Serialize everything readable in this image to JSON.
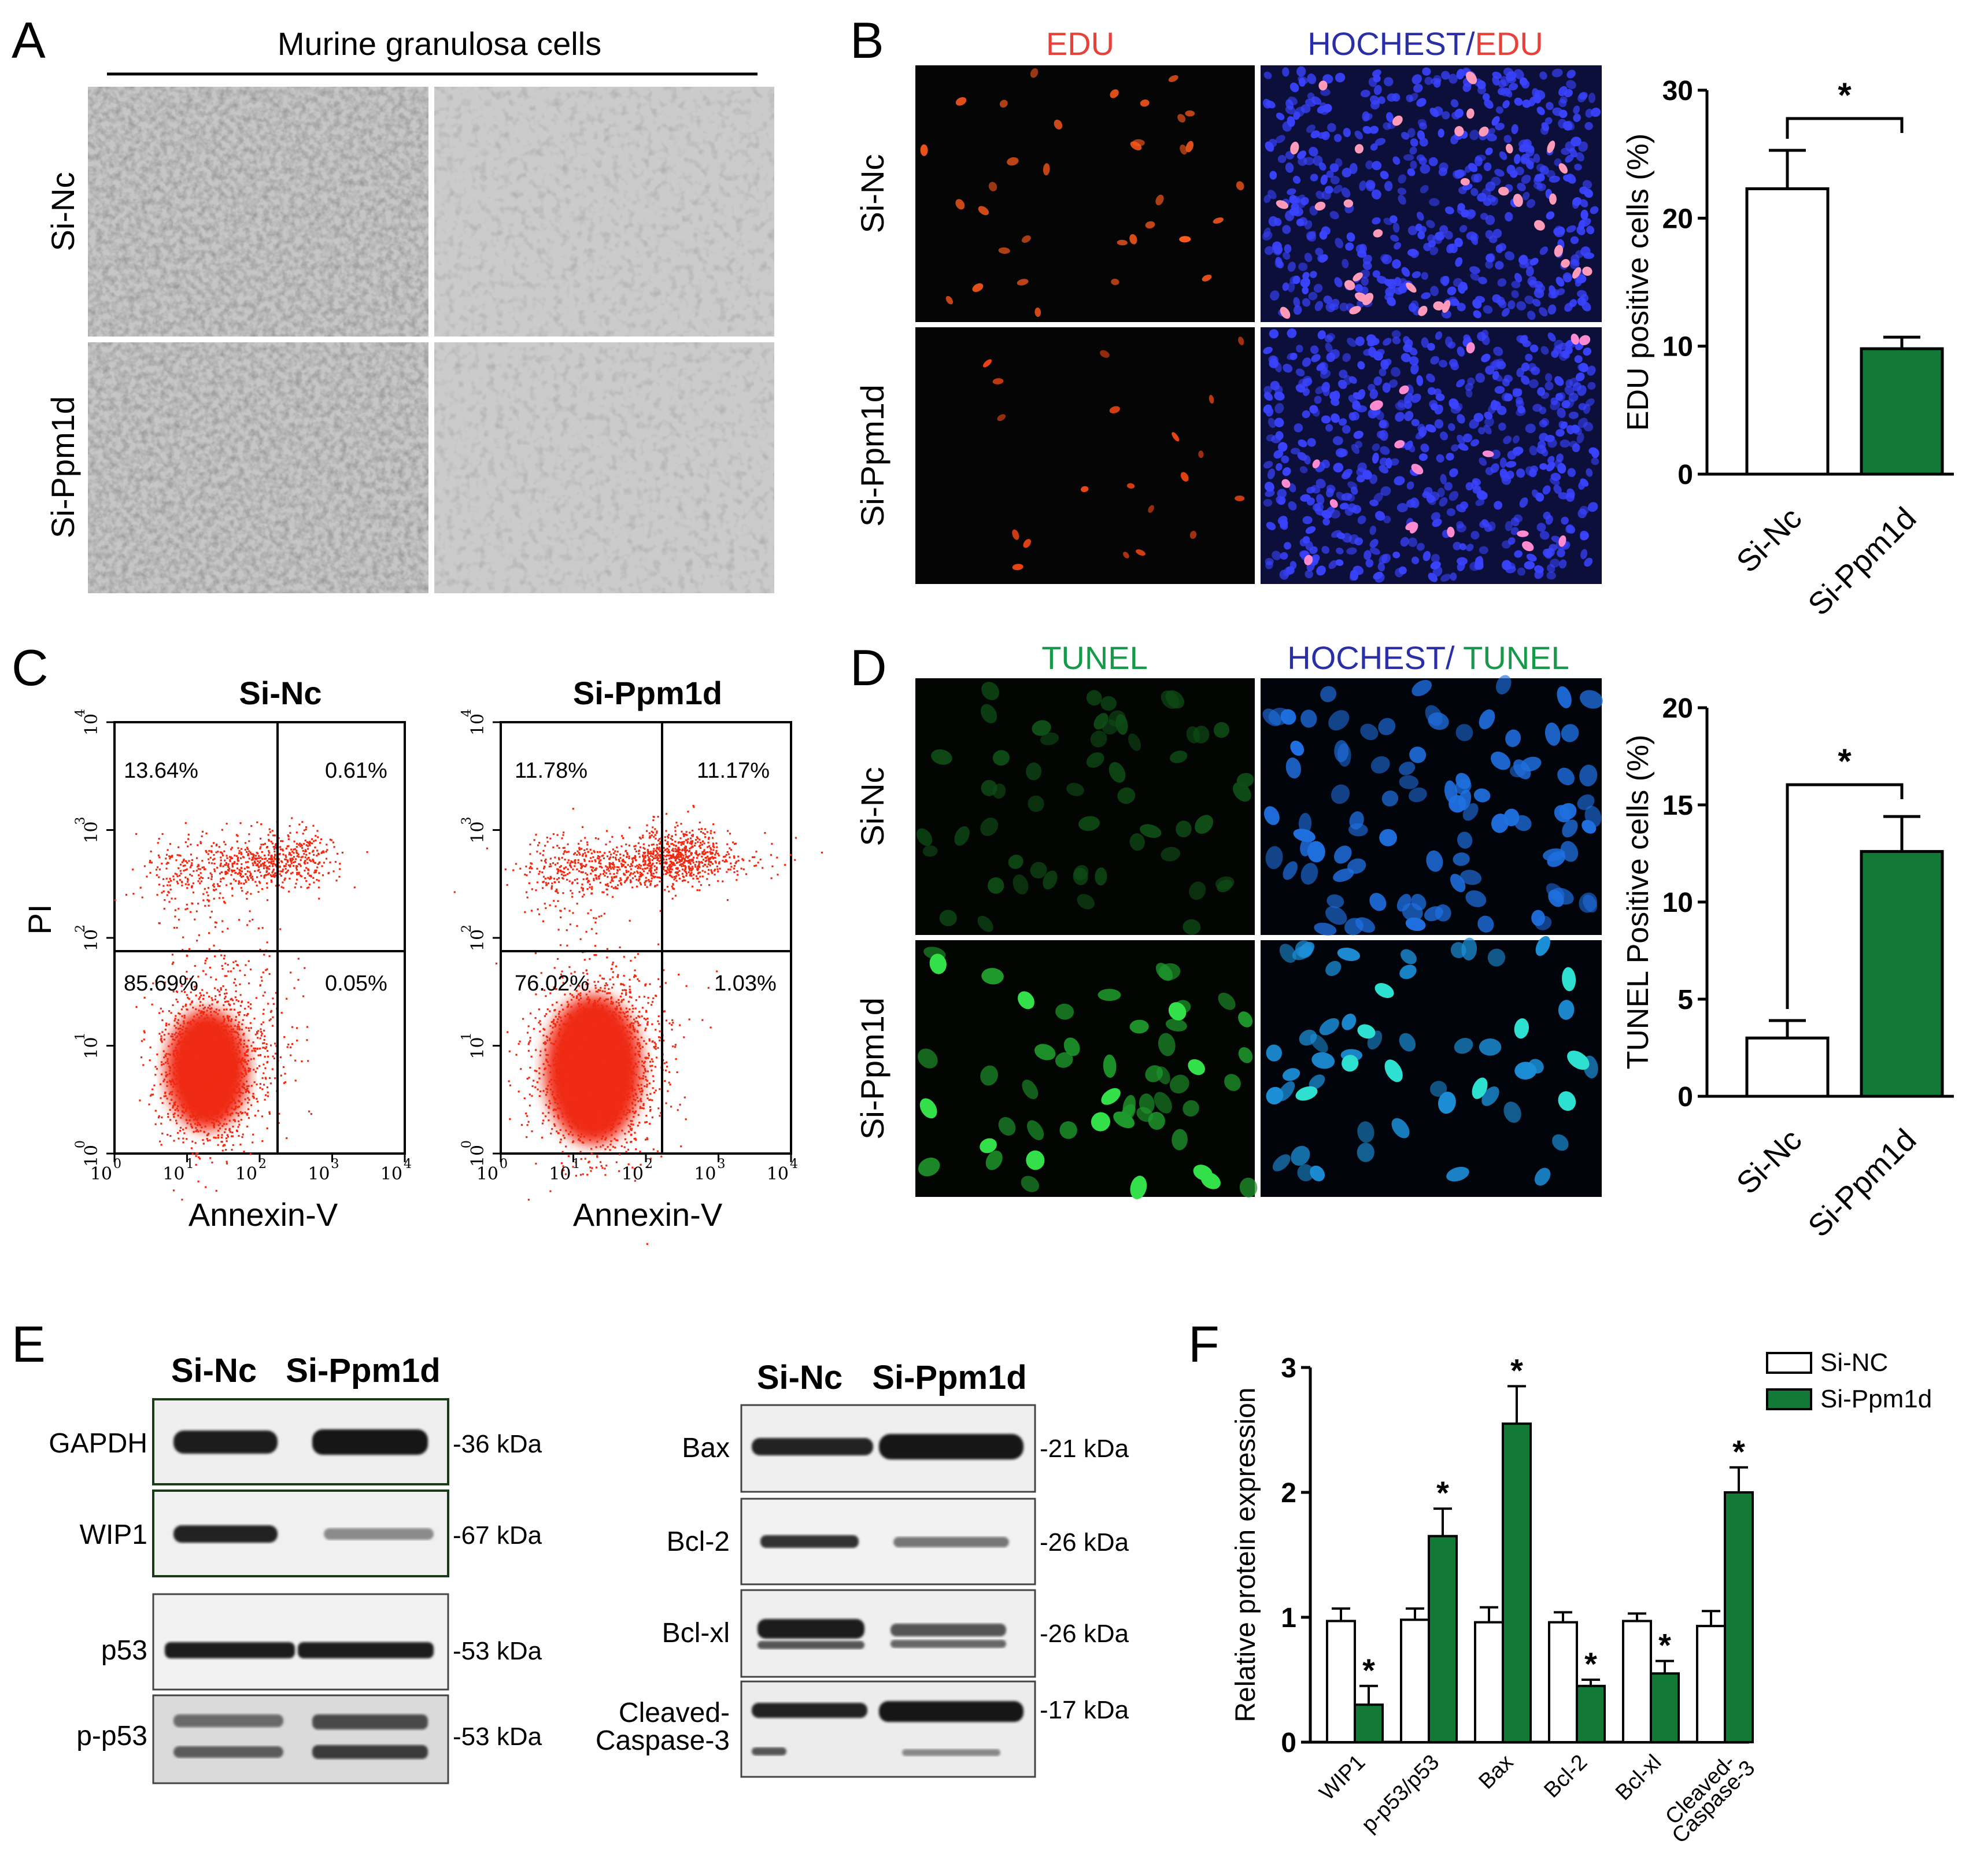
{
  "figure": {
    "panel_letters": [
      "A",
      "B",
      "C",
      "D",
      "E",
      "F"
    ],
    "row_labels": {
      "si_nc": "Si-Nc",
      "si_ppm1d": "Si-Ppm1d"
    },
    "panel_a": {
      "title": "Murine granulosa cells"
    },
    "panel_b": {
      "channel_1": "EDU",
      "channel_2_a": "HOCHEST",
      "channel_2_sep": "/",
      "channel_2_b": "EDU"
    },
    "panel_c": {
      "ylabel": "PI",
      "xlabel": "Annexin-V",
      "tick_base": "10",
      "tick_exponents": [
        "0",
        "1",
        "2",
        "3",
        "4"
      ],
      "plots": [
        {
          "title": "Si-Nc",
          "quadrants": {
            "ul": "13.64%",
            "ur": "0.61%",
            "ll": "85.69%",
            "lr": "0.05%"
          }
        },
        {
          "title": "Si-Ppm1d",
          "quadrants": {
            "ul": "11.78%",
            "ur": "11.17%",
            "ll": "76.02%",
            "lr": "1.03%"
          }
        }
      ]
    },
    "panel_d": {
      "channel_1": "TUNEL",
      "channel_2_a": "HOCHEST",
      "channel_2_sep": "/ ",
      "channel_2_b": "TUNEL"
    },
    "panel_e": {
      "lanes": [
        "Si-Nc",
        "Si-Ppm1d"
      ],
      "left_blots": [
        {
          "label": "GAPDH",
          "kda": "-36 kDa"
        },
        {
          "label": "WIP1",
          "kda": "-67 kDa"
        },
        {
          "label": "p53",
          "kda": "-53 kDa"
        },
        {
          "label": "p-p53",
          "kda": "-53 kDa"
        }
      ],
      "right_blots": [
        {
          "label": "Bax",
          "kda": "-21 kDa"
        },
        {
          "label": "Bcl-2",
          "kda": "-26 kDa"
        },
        {
          "label": "Bcl-xl",
          "kda": "-26 kDa"
        },
        {
          "label_line1": "Cleaved-",
          "label_line2": "Caspase-3",
          "kda": "-17 kDa"
        }
      ]
    },
    "colors": {
      "green": "#127a36",
      "red_label": "#e8413a",
      "blue_label": "#2a2fa8",
      "green_label": "#169a4a",
      "flow_dots": "#ef2a12"
    }
  },
  "chart_data": [
    {
      "id": "B",
      "type": "bar",
      "categories": [
        "Si-Nc",
        "Si-Ppm1d"
      ],
      "values": [
        22.3,
        9.8
      ],
      "errors": [
        3.0,
        0.9
      ],
      "colors": [
        "#ffffff",
        "#127a36"
      ],
      "ylabel": "EDU positive cells (%)",
      "ylim": [
        0,
        30
      ],
      "yticks": [
        0,
        10,
        20,
        30
      ],
      "significance": "*"
    },
    {
      "id": "D",
      "type": "bar",
      "categories": [
        "Si-Nc",
        "Si-Ppm1d"
      ],
      "values": [
        3.0,
        12.6
      ],
      "errors": [
        0.9,
        1.8
      ],
      "colors": [
        "#ffffff",
        "#127a36"
      ],
      "ylabel": "TUNEL Positive cells (%)",
      "ylim": [
        0,
        20
      ],
      "yticks": [
        0,
        5,
        10,
        15,
        20
      ],
      "significance": "*"
    },
    {
      "id": "F",
      "type": "bar",
      "categories": [
        "WIP1",
        "p-p53/p53",
        "Bax",
        "Bcl-2",
        "Bcl-xl",
        "Cleaved-\nCaspase-3"
      ],
      "series": [
        {
          "name": "Si-NC",
          "color": "#ffffff",
          "values": [
            0.97,
            0.98,
            0.96,
            0.96,
            0.97,
            0.93
          ],
          "errors": [
            0.1,
            0.09,
            0.12,
            0.08,
            0.06,
            0.12
          ]
        },
        {
          "name": "Si-Ppm1d",
          "color": "#127a36",
          "values": [
            0.3,
            1.65,
            2.55,
            0.45,
            0.55,
            2.0
          ],
          "errors": [
            0.15,
            0.22,
            0.3,
            0.05,
            0.1,
            0.2
          ]
        }
      ],
      "significance": [
        "*",
        "*",
        "*",
        "*",
        "*",
        "*"
      ],
      "ylabel": "Relative protein expression",
      "ylim": [
        0,
        3
      ],
      "yticks": [
        0,
        1,
        2,
        3
      ],
      "legend": "top-right"
    }
  ]
}
